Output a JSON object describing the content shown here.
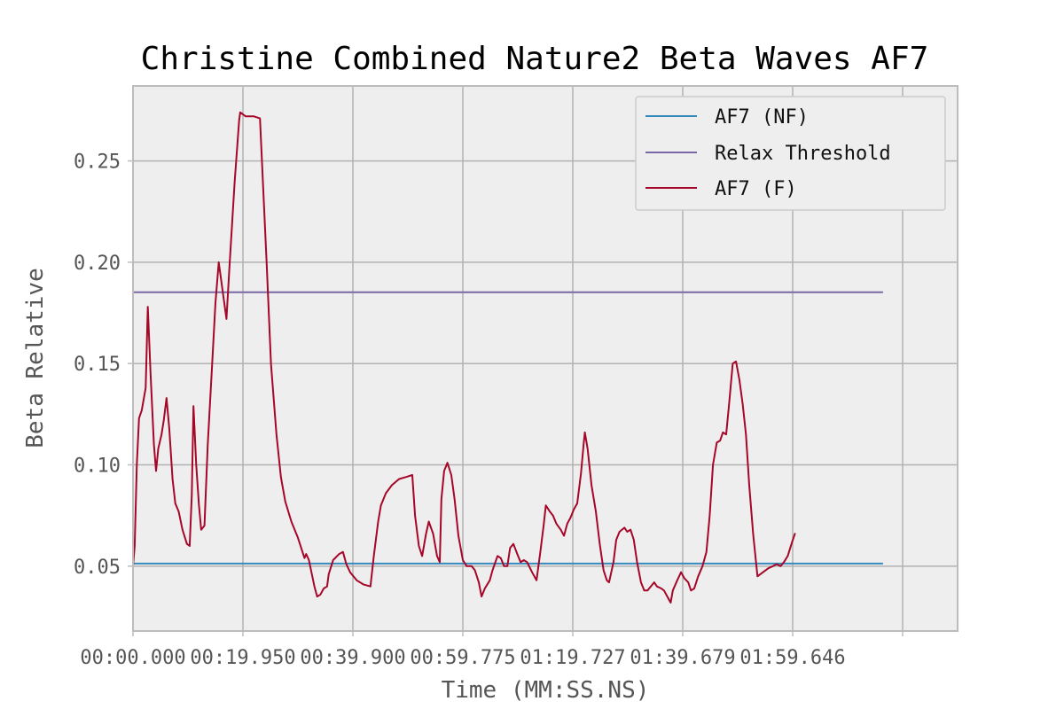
{
  "chart_data": {
    "type": "line",
    "title": "Christine Combined Nature2 Beta Waves AF7",
    "xlabel": "Time (MM:SS.NS)",
    "ylabel": "Beta Relative",
    "xlim": [
      0,
      150
    ],
    "ylim": [
      0.018,
      0.287
    ],
    "x_ticks": [
      0,
      20,
      40,
      60,
      80,
      100,
      120,
      140
    ],
    "x_tick_labels": [
      "00:00.000",
      "00:19.950",
      "00:39.900",
      "00:59.775",
      "01:19.727",
      "01:39.679",
      "01:59.646",
      ""
    ],
    "y_ticks": [
      0.05,
      0.1,
      0.15,
      0.2,
      0.25
    ],
    "y_tick_labels": [
      "0.05",
      "0.10",
      "0.15",
      "0.20",
      "0.25"
    ],
    "grid": true,
    "legend_position": "top-right",
    "series": [
      {
        "name": "AF7 (NF)",
        "color": "#348ABD",
        "points": [
          [
            0,
            0.0513
          ],
          [
            136.3,
            0.0513
          ]
        ]
      },
      {
        "name": "Relax Threshold",
        "color": "#7A68A6",
        "points": [
          [
            0,
            0.1852
          ],
          [
            136.3,
            0.1852
          ]
        ]
      },
      {
        "name": "AF7 (F)",
        "color": "#A60628",
        "points": [
          [
            0,
            0.05
          ],
          [
            0.3,
            0.06
          ],
          [
            0.7,
            0.1
          ],
          [
            1.1,
            0.123
          ],
          [
            1.6,
            0.127
          ],
          [
            2.3,
            0.138
          ],
          [
            2.7,
            0.178
          ],
          [
            3.2,
            0.145
          ],
          [
            3.8,
            0.11
          ],
          [
            4.2,
            0.097
          ],
          [
            4.6,
            0.108
          ],
          [
            5.2,
            0.115
          ],
          [
            5.6,
            0.122
          ],
          [
            6.1,
            0.133
          ],
          [
            6.6,
            0.118
          ],
          [
            7.2,
            0.093
          ],
          [
            7.7,
            0.081
          ],
          [
            8.3,
            0.077
          ],
          [
            9.0,
            0.068
          ],
          [
            9.8,
            0.061
          ],
          [
            10.3,
            0.06
          ],
          [
            10.7,
            0.085
          ],
          [
            11.0,
            0.129
          ],
          [
            11.5,
            0.1
          ],
          [
            12.0,
            0.08
          ],
          [
            12.4,
            0.068
          ],
          [
            13.0,
            0.07
          ],
          [
            13.6,
            0.11
          ],
          [
            14.4,
            0.15
          ],
          [
            15.0,
            0.18
          ],
          [
            15.6,
            0.2
          ],
          [
            16.5,
            0.182
          ],
          [
            17.0,
            0.172
          ],
          [
            17.6,
            0.2
          ],
          [
            18.5,
            0.24
          ],
          [
            19.3,
            0.27
          ],
          [
            19.5,
            0.274
          ],
          [
            20.5,
            0.272
          ],
          [
            22.0,
            0.272
          ],
          [
            23.1,
            0.271
          ],
          [
            24.3,
            0.2
          ],
          [
            25.1,
            0.15
          ],
          [
            26.1,
            0.115
          ],
          [
            26.9,
            0.094
          ],
          [
            27.7,
            0.082
          ],
          [
            28.8,
            0.072
          ],
          [
            30.0,
            0.064
          ],
          [
            31.2,
            0.054
          ],
          [
            31.5,
            0.056
          ],
          [
            32.0,
            0.053
          ],
          [
            33.0,
            0.04
          ],
          [
            33.5,
            0.035
          ],
          [
            34.1,
            0.036
          ],
          [
            34.7,
            0.039
          ],
          [
            35.3,
            0.04
          ],
          [
            35.6,
            0.046
          ],
          [
            36.4,
            0.053
          ],
          [
            37.5,
            0.056
          ],
          [
            38.2,
            0.057
          ],
          [
            38.8,
            0.051
          ],
          [
            39.5,
            0.047
          ],
          [
            40.7,
            0.043
          ],
          [
            41.9,
            0.041
          ],
          [
            43.2,
            0.04
          ],
          [
            43.8,
            0.055
          ],
          [
            44.6,
            0.072
          ],
          [
            45.1,
            0.08
          ],
          [
            46.0,
            0.086
          ],
          [
            47.1,
            0.09
          ],
          [
            48.4,
            0.093
          ],
          [
            49.7,
            0.094
          ],
          [
            50.8,
            0.095
          ],
          [
            51.3,
            0.075
          ],
          [
            52.0,
            0.06
          ],
          [
            52.6,
            0.055
          ],
          [
            53.3,
            0.066
          ],
          [
            53.8,
            0.072
          ],
          [
            54.6,
            0.066
          ],
          [
            55.3,
            0.055
          ],
          [
            55.8,
            0.052
          ],
          [
            56.1,
            0.083
          ],
          [
            56.6,
            0.097
          ],
          [
            57.2,
            0.101
          ],
          [
            57.9,
            0.095
          ],
          [
            58.5,
            0.083
          ],
          [
            59.2,
            0.065
          ],
          [
            60.0,
            0.053
          ],
          [
            60.7,
            0.05
          ],
          [
            61.6,
            0.05
          ],
          [
            62.2,
            0.048
          ],
          [
            62.9,
            0.042
          ],
          [
            63.4,
            0.035
          ],
          [
            64.0,
            0.039
          ],
          [
            64.9,
            0.043
          ],
          [
            65.4,
            0.048
          ],
          [
            66.3,
            0.055
          ],
          [
            66.9,
            0.054
          ],
          [
            67.5,
            0.05
          ],
          [
            68.1,
            0.05
          ],
          [
            68.6,
            0.059
          ],
          [
            69.2,
            0.061
          ],
          [
            69.9,
            0.056
          ],
          [
            70.5,
            0.052
          ],
          [
            71.1,
            0.053
          ],
          [
            71.7,
            0.052
          ],
          [
            72.6,
            0.047
          ],
          [
            73.4,
            0.043
          ],
          [
            74.1,
            0.057
          ],
          [
            74.7,
            0.07
          ],
          [
            75.1,
            0.08
          ],
          [
            75.8,
            0.077
          ],
          [
            76.4,
            0.075
          ],
          [
            77.0,
            0.071
          ],
          [
            77.8,
            0.068
          ],
          [
            78.4,
            0.065
          ],
          [
            79.0,
            0.071
          ],
          [
            79.6,
            0.074
          ],
          [
            80.2,
            0.078
          ],
          [
            80.8,
            0.081
          ],
          [
            81.5,
            0.096
          ],
          [
            82.0,
            0.111
          ],
          [
            82.2,
            0.116
          ],
          [
            82.7,
            0.108
          ],
          [
            83.4,
            0.09
          ],
          [
            84.2,
            0.077
          ],
          [
            84.9,
            0.061
          ],
          [
            85.6,
            0.048
          ],
          [
            86.2,
            0.043
          ],
          [
            86.6,
            0.042
          ],
          [
            87.4,
            0.052
          ],
          [
            87.9,
            0.063
          ],
          [
            88.5,
            0.067
          ],
          [
            89.4,
            0.069
          ],
          [
            89.9,
            0.067
          ],
          [
            90.5,
            0.068
          ],
          [
            91.1,
            0.063
          ],
          [
            91.7,
            0.052
          ],
          [
            92.4,
            0.042
          ],
          [
            93.0,
            0.038
          ],
          [
            93.6,
            0.038
          ],
          [
            94.2,
            0.04
          ],
          [
            94.8,
            0.042
          ],
          [
            95.3,
            0.04
          ],
          [
            96.1,
            0.039
          ],
          [
            96.6,
            0.038
          ],
          [
            97.2,
            0.035
          ],
          [
            97.8,
            0.032
          ],
          [
            98.2,
            0.038
          ],
          [
            99.0,
            0.043
          ],
          [
            99.7,
            0.047
          ],
          [
            100.3,
            0.044
          ],
          [
            101.0,
            0.042
          ],
          [
            101.5,
            0.038
          ],
          [
            102.1,
            0.039
          ],
          [
            102.8,
            0.045
          ],
          [
            103.6,
            0.05
          ],
          [
            104.3,
            0.057
          ],
          [
            104.9,
            0.075
          ],
          [
            105.5,
            0.1
          ],
          [
            106.2,
            0.111
          ],
          [
            106.8,
            0.112
          ],
          [
            107.3,
            0.116
          ],
          [
            107.9,
            0.115
          ],
          [
            108.5,
            0.132
          ],
          [
            109.1,
            0.15
          ],
          [
            109.7,
            0.151
          ],
          [
            110.3,
            0.142
          ],
          [
            110.9,
            0.13
          ],
          [
            111.5,
            0.115
          ],
          [
            112.1,
            0.09
          ],
          [
            112.8,
            0.066
          ],
          [
            113.6,
            0.045
          ],
          [
            114.6,
            0.047
          ],
          [
            115.6,
            0.049
          ],
          [
            116.4,
            0.05
          ],
          [
            117.1,
            0.051
          ],
          [
            117.8,
            0.05
          ],
          [
            118.4,
            0.052
          ],
          [
            119.1,
            0.055
          ],
          [
            119.9,
            0.062
          ],
          [
            120.4,
            0.066
          ]
        ]
      }
    ]
  }
}
